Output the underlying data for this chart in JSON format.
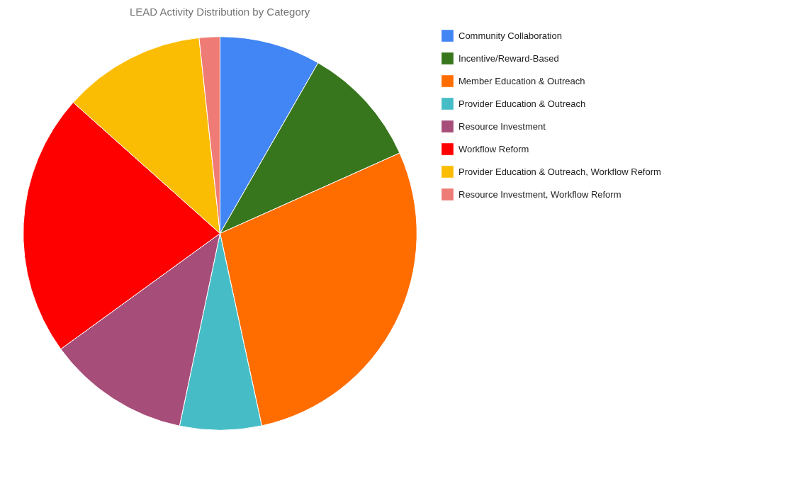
{
  "chart_data": {
    "type": "pie",
    "title": "LEAD Activity Distribution by Category",
    "categories": [
      "Community Collaboration",
      "Incentive/Reward-Based",
      "Member Education & Outreach",
      "Provider Education & Outreach",
      "Resource Investment",
      "Workflow Reform",
      "Provider Education & Outreach, Workflow Reform",
      "Resource Investment, Workflow Reform"
    ],
    "values": [
      8.3,
      10,
      28.3,
      6.7,
      11.7,
      21.6,
      11.7,
      1.7
    ],
    "colors": [
      "#4285f4",
      "#38761d",
      "#ff6d01",
      "#46bdc6",
      "#a64d79",
      "#ff0000",
      "#fbbc04",
      "#ee7b75"
    ],
    "legend": "right"
  }
}
